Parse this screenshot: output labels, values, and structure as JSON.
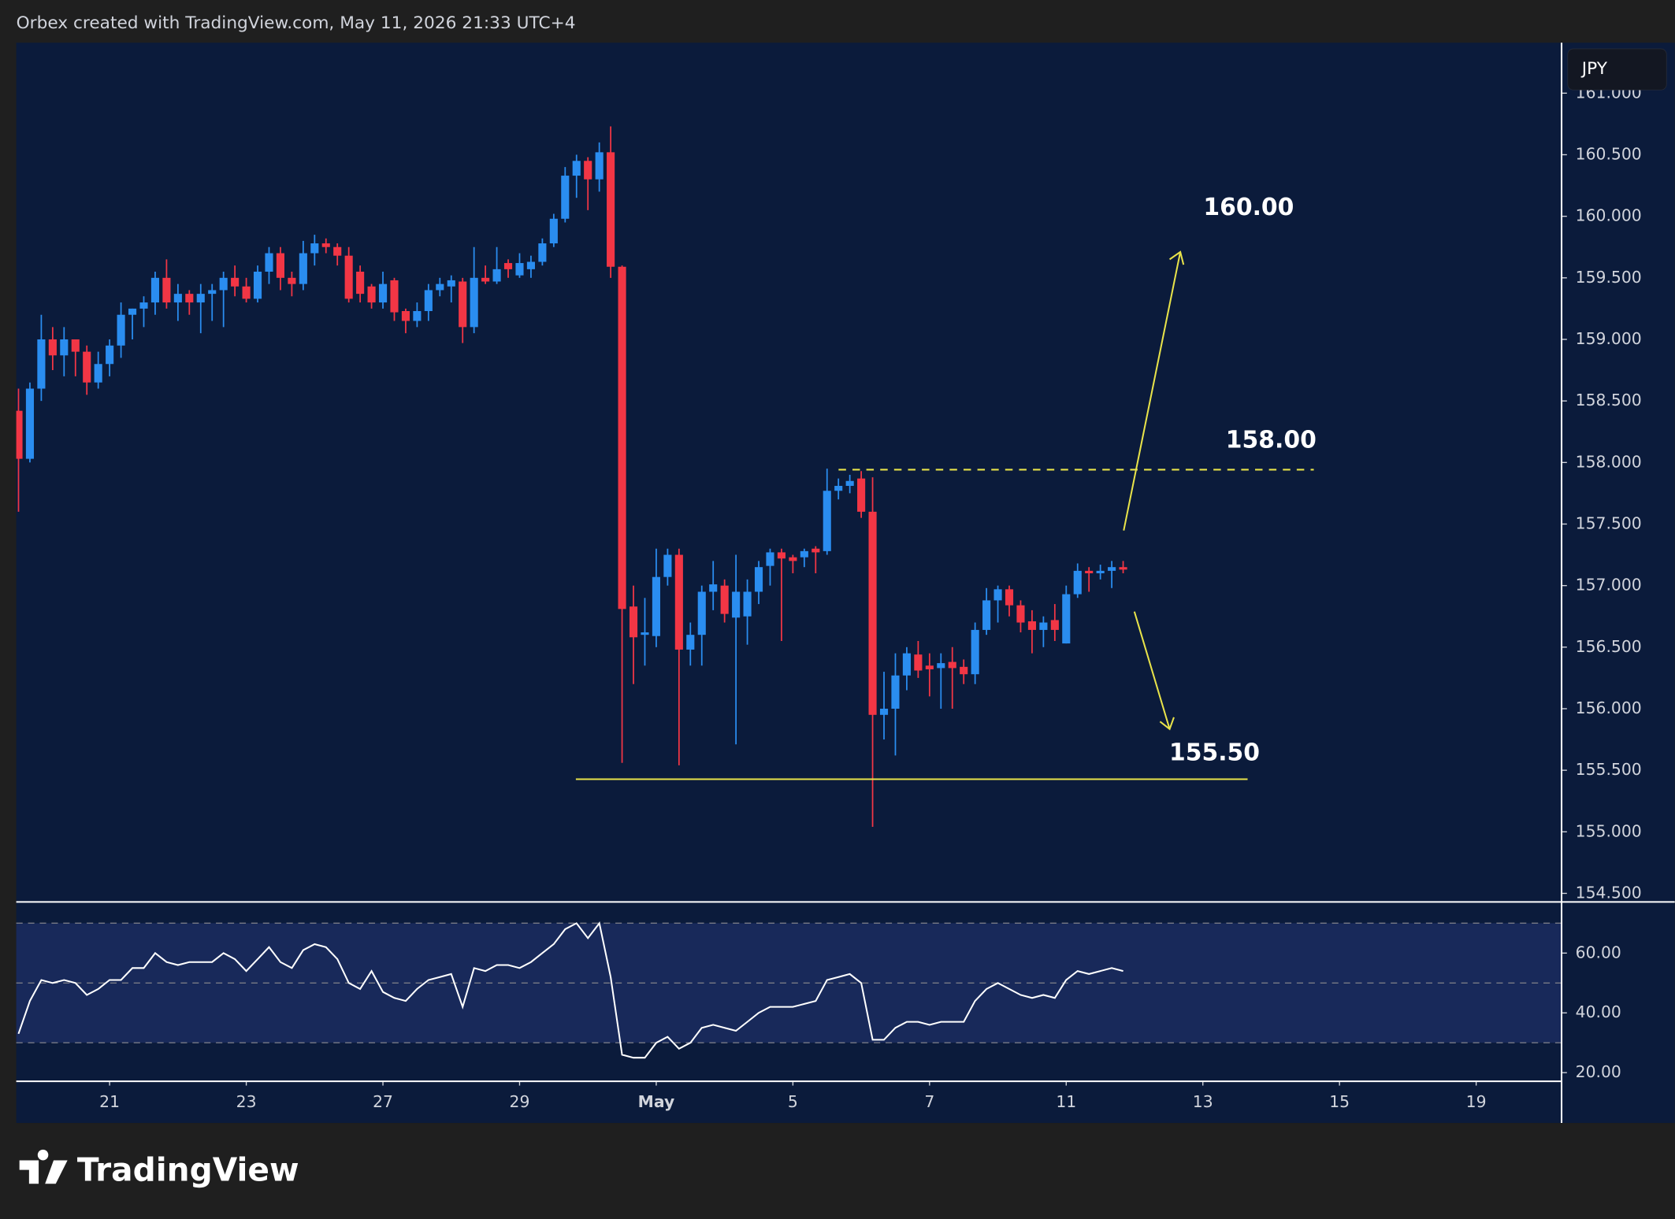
{
  "header": "Orbex created with TradingView.com, May 11, 2026 21:33 UTC+4",
  "currency": "JPY",
  "footer": "TradingView",
  "chart_data": {
    "type": "candlestick",
    "up_color": "#2a8df0",
    "down_color": "#f23645",
    "xlim": [
      -0.2,
      135.5
    ],
    "xticks": [
      {
        "value": 8,
        "label": "21"
      },
      {
        "value": 20,
        "label": "23"
      },
      {
        "value": 32,
        "label": "27"
      },
      {
        "value": 44,
        "label": "29"
      },
      {
        "value": 56,
        "label": "May"
      },
      {
        "value": 68,
        "label": "5"
      },
      {
        "value": 80,
        "label": "7"
      },
      {
        "value": 92,
        "label": "11"
      },
      {
        "value": 104,
        "label": "13"
      },
      {
        "value": 116,
        "label": "15"
      },
      {
        "value": 128,
        "label": "19"
      }
    ],
    "ylim": [
      154.43,
      161.41
    ],
    "yticks": [
      {
        "value": 154.5,
        "label": "154.500"
      },
      {
        "value": 155,
        "label": "155.000"
      },
      {
        "value": 155.5,
        "label": "155.500"
      },
      {
        "value": 156,
        "label": "156.000"
      },
      {
        "value": 156.5,
        "label": "156.500"
      },
      {
        "value": 157,
        "label": "157.000"
      },
      {
        "value": 157.5,
        "label": "157.500"
      },
      {
        "value": 158,
        "label": "158.000"
      },
      {
        "value": 158.5,
        "label": "158.500"
      },
      {
        "value": 159,
        "label": "159.000"
      },
      {
        "value": 159.5,
        "label": "159.500"
      },
      {
        "value": 160,
        "label": "160.000"
      },
      {
        "value": 160.5,
        "label": "160.500"
      },
      {
        "value": 161,
        "label": "161.000"
      }
    ],
    "open": [
      158.42,
      158.03,
      158.6,
      159.0,
      158.87,
      159.0,
      158.9,
      158.65,
      158.8,
      158.95,
      159.2,
      159.25,
      159.3,
      159.5,
      159.3,
      159.37,
      159.3,
      159.37,
      159.4,
      159.5,
      159.43,
      159.33,
      159.55,
      159.7,
      159.5,
      159.45,
      159.7,
      159.78,
      159.75,
      159.68,
      159.55,
      159.43,
      159.3,
      159.48,
      159.23,
      159.15,
      159.23,
      159.4,
      159.43,
      159.47,
      159.1,
      159.5,
      159.47,
      159.62,
      159.52,
      159.57,
      159.63,
      159.78,
      159.98,
      160.33,
      160.45,
      160.3,
      160.52,
      159.59,
      156.83,
      156.6,
      156.59,
      157.07,
      157.25,
      156.48,
      156.6,
      156.95,
      157.0,
      156.74,
      156.75,
      156.95,
      157.16,
      157.27,
      157.23,
      157.23,
      157.3,
      157.28,
      157.77,
      157.81,
      157.87,
      157.6,
      155.95,
      156.0,
      156.27,
      156.44,
      156.35,
      156.33,
      156.38,
      156.34,
      156.28,
      156.64,
      156.88,
      156.97,
      156.84,
      156.71,
      156.64,
      156.72,
      156.53,
      156.93,
      157.12,
      157.1,
      157.12,
      157.15
    ],
    "high": [
      158.6,
      158.65,
      159.2,
      159.1,
      159.1,
      159.0,
      158.95,
      158.9,
      159.0,
      159.3,
      159.25,
      159.35,
      159.55,
      159.65,
      159.45,
      159.4,
      159.45,
      159.45,
      159.55,
      159.6,
      159.5,
      159.6,
      159.75,
      159.75,
      159.55,
      159.8,
      159.85,
      159.82,
      159.78,
      159.75,
      159.6,
      159.45,
      159.55,
      159.5,
      159.25,
      159.3,
      159.45,
      159.5,
      159.52,
      159.5,
      159.75,
      159.6,
      159.75,
      159.65,
      159.7,
      159.68,
      159.82,
      160.02,
      160.4,
      160.5,
      160.48,
      160.6,
      160.73,
      159.6,
      157.0,
      156.9,
      157.3,
      157.3,
      157.3,
      156.7,
      157.0,
      157.2,
      157.05,
      157.25,
      157.05,
      157.2,
      157.3,
      157.3,
      157.25,
      157.3,
      157.32,
      157.95,
      157.87,
      157.9,
      157.93,
      157.88,
      156.3,
      156.45,
      156.5,
      156.55,
      156.45,
      156.45,
      156.5,
      156.4,
      156.7,
      156.98,
      157.0,
      157.0,
      156.88,
      156.8,
      156.75,
      156.85,
      157.0,
      157.18,
      157.15,
      157.17,
      157.2,
      157.2
    ],
    "low": [
      157.6,
      158.0,
      158.5,
      158.75,
      158.7,
      158.7,
      158.55,
      158.6,
      158.7,
      158.85,
      159.0,
      159.1,
      159.2,
      159.25,
      159.15,
      159.2,
      159.05,
      159.15,
      159.1,
      159.35,
      159.3,
      159.3,
      159.45,
      159.4,
      159.35,
      159.4,
      159.6,
      159.7,
      159.6,
      159.3,
      159.3,
      159.25,
      159.25,
      159.15,
      159.05,
      159.1,
      159.15,
      159.35,
      159.3,
      158.97,
      159.05,
      159.45,
      159.45,
      159.5,
      159.5,
      159.5,
      159.6,
      159.75,
      159.95,
      160.15,
      160.05,
      160.2,
      159.5,
      155.56,
      156.2,
      156.35,
      156.5,
      157.0,
      155.54,
      156.35,
      156.35,
      156.8,
      156.7,
      155.71,
      156.52,
      156.85,
      157.0,
      156.55,
      157.1,
      157.15,
      157.1,
      157.25,
      157.7,
      157.75,
      157.55,
      155.04,
      155.75,
      155.62,
      156.15,
      156.25,
      156.1,
      156.0,
      156.0,
      156.2,
      156.2,
      156.6,
      156.7,
      156.75,
      156.62,
      156.45,
      156.5,
      156.55,
      156.53,
      156.9,
      156.95,
      157.05,
      156.98,
      157.1
    ],
    "close": [
      158.03,
      158.6,
      159.0,
      158.87,
      159.0,
      158.9,
      158.65,
      158.8,
      158.95,
      159.2,
      159.25,
      159.3,
      159.5,
      159.3,
      159.37,
      159.3,
      159.37,
      159.4,
      159.5,
      159.43,
      159.33,
      159.55,
      159.7,
      159.5,
      159.45,
      159.7,
      159.78,
      159.75,
      159.68,
      159.33,
      159.37,
      159.3,
      159.45,
      159.22,
      159.15,
      159.23,
      159.4,
      159.45,
      159.48,
      159.1,
      159.5,
      159.47,
      159.57,
      159.57,
      159.62,
      159.63,
      159.78,
      159.98,
      160.33,
      160.45,
      160.3,
      160.52,
      159.59,
      156.81,
      156.58,
      156.62,
      157.07,
      157.25,
      156.48,
      156.6,
      156.95,
      157.01,
      156.77,
      156.95,
      156.95,
      157.15,
      157.27,
      157.22,
      157.2,
      157.28,
      157.27,
      157.77,
      157.81,
      157.85,
      157.6,
      155.95,
      156.0,
      156.27,
      156.45,
      156.31,
      156.32,
      156.37,
      156.33,
      156.28,
      156.64,
      156.88,
      156.97,
      156.84,
      156.7,
      156.64,
      156.7,
      156.64,
      156.93,
      157.12,
      157.1,
      157.12,
      157.15,
      157.13
    ],
    "annotations": [
      "160.00",
      "158.00",
      "155.50"
    ],
    "rsi": {
      "color": "#ffffff",
      "ylim": [
        17.1,
        77.1
      ],
      "yticks": [
        {
          "value": 20,
          "label": "20.00"
        },
        {
          "value": 40,
          "label": "40.00"
        },
        {
          "value": 60,
          "label": "60.00"
        }
      ],
      "levels": [
        70,
        50,
        30
      ],
      "values": [
        33,
        44,
        51,
        50,
        51,
        50,
        46,
        48,
        51,
        51,
        55,
        55,
        60,
        57,
        56,
        57,
        57,
        57,
        60,
        58,
        54,
        58,
        62,
        57,
        55,
        61,
        63,
        62,
        58,
        50,
        48,
        54,
        47,
        45,
        44,
        48,
        51,
        52,
        53,
        42,
        55,
        54,
        56,
        56,
        55,
        57,
        60,
        63,
        68,
        70,
        65,
        70,
        52,
        26,
        25,
        25,
        30,
        32,
        28,
        30,
        35,
        36,
        35,
        34,
        37,
        40,
        42,
        42,
        42,
        43,
        44,
        51,
        52,
        53,
        50,
        31,
        31,
        35,
        37,
        37,
        36,
        37,
        37,
        37,
        44,
        48,
        50,
        48,
        46,
        45,
        46,
        45,
        51,
        54,
        53,
        54,
        55,
        54
      ]
    }
  }
}
